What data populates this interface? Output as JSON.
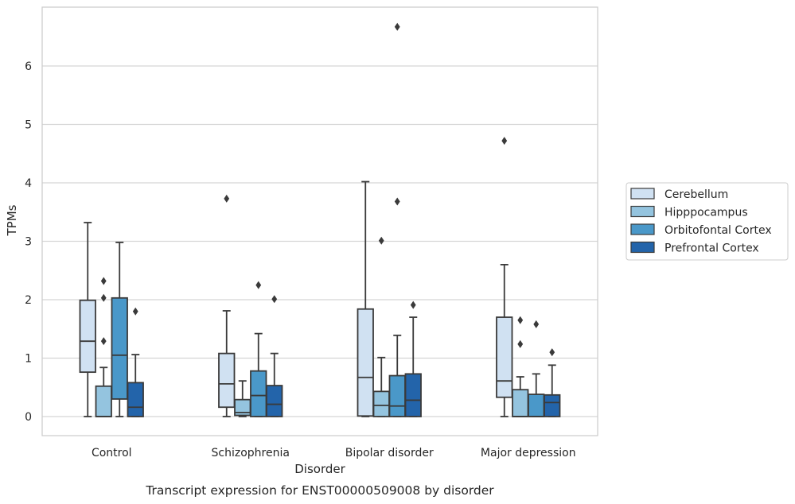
{
  "chart_data": {
    "type": "box",
    "xlabel": "Disorder",
    "ylabel": "TPMs",
    "caption": "Transcript expression for ENST00000509008 by disorder",
    "ylim": [
      -0.32,
      7.0
    ],
    "yticks": [
      0,
      1,
      2,
      3,
      4,
      5,
      6
    ],
    "grid": "horizontal",
    "legend_position": "right",
    "categories": [
      "Control",
      "Schizophrenia",
      "Bipolar disorder",
      "Major depression"
    ],
    "series": [
      {
        "name": "Cerebellum",
        "color": "#d0e1f2",
        "boxes": [
          {
            "whisker_low": 0.0,
            "q1": 0.76,
            "median": 1.29,
            "q3": 1.99,
            "whisker_high": 3.32,
            "outliers": []
          },
          {
            "whisker_low": 0.0,
            "q1": 0.16,
            "median": 0.56,
            "q3": 1.08,
            "whisker_high": 1.81,
            "outliers": [
              3.73
            ]
          },
          {
            "whisker_low": 0.0,
            "q1": 0.01,
            "median": 0.67,
            "q3": 1.84,
            "whisker_high": 4.02,
            "outliers": []
          },
          {
            "whisker_low": 0.0,
            "q1": 0.33,
            "median": 0.61,
            "q3": 1.7,
            "whisker_high": 2.6,
            "outliers": [
              4.72
            ]
          }
        ]
      },
      {
        "name": "Hipppocampus",
        "color": "#94c4df",
        "boxes": [
          {
            "whisker_low": 0.0,
            "q1": 0.0,
            "median": 0.0,
            "q3": 0.52,
            "whisker_high": 0.84,
            "outliers": [
              1.29,
              2.03,
              2.32
            ]
          },
          {
            "whisker_low": 0.0,
            "q1": 0.02,
            "median": 0.07,
            "q3": 0.29,
            "whisker_high": 0.61,
            "outliers": []
          },
          {
            "whisker_low": 0.0,
            "q1": 0.0,
            "median": 0.19,
            "q3": 0.43,
            "whisker_high": 1.01,
            "outliers": [
              3.01
            ]
          },
          {
            "whisker_low": 0.0,
            "q1": 0.0,
            "median": 0.0,
            "q3": 0.46,
            "whisker_high": 0.68,
            "outliers": [
              1.24,
              1.65
            ]
          }
        ]
      },
      {
        "name": "Orbitofontal Cortex",
        "color": "#4a98c9",
        "boxes": [
          {
            "whisker_low": 0.0,
            "q1": 0.3,
            "median": 1.05,
            "q3": 2.03,
            "whisker_high": 2.98,
            "outliers": []
          },
          {
            "whisker_low": 0.0,
            "q1": 0.0,
            "median": 0.36,
            "q3": 0.78,
            "whisker_high": 1.42,
            "outliers": [
              2.25
            ]
          },
          {
            "whisker_low": 0.0,
            "q1": 0.0,
            "median": 0.18,
            "q3": 0.7,
            "whisker_high": 1.39,
            "outliers": [
              3.68,
              6.67
            ]
          },
          {
            "whisker_low": 0.0,
            "q1": 0.0,
            "median": 0.0,
            "q3": 0.38,
            "whisker_high": 0.73,
            "outliers": [
              1.58
            ]
          }
        ]
      },
      {
        "name": "Prefrontal Cortex",
        "color": "#2364aa",
        "boxes": [
          {
            "whisker_low": 0.0,
            "q1": 0.0,
            "median": 0.16,
            "q3": 0.58,
            "whisker_high": 1.06,
            "outliers": [
              1.8
            ]
          },
          {
            "whisker_low": 0.0,
            "q1": 0.0,
            "median": 0.21,
            "q3": 0.53,
            "whisker_high": 1.08,
            "outliers": [
              2.01
            ]
          },
          {
            "whisker_low": 0.0,
            "q1": 0.0,
            "median": 0.28,
            "q3": 0.73,
            "whisker_high": 1.7,
            "outliers": [
              1.91
            ]
          },
          {
            "whisker_low": 0.0,
            "q1": 0.0,
            "median": 0.24,
            "q3": 0.37,
            "whisker_high": 0.88,
            "outliers": [
              1.1
            ]
          }
        ]
      }
    ]
  }
}
